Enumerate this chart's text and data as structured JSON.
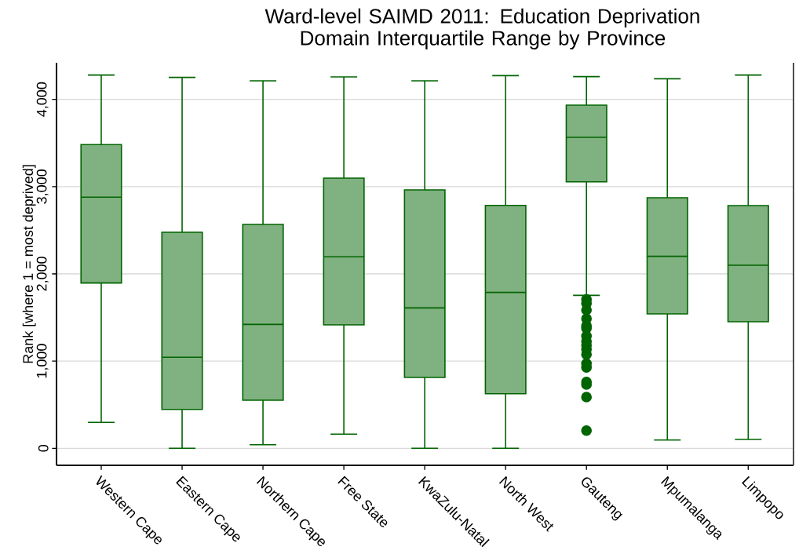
{
  "chart_data": {
    "type": "box",
    "title": "Ward-level SAIMD 2011: Education Deprivation Domain Interquartile Range by Province",
    "ylabel": "Rank [where 1 = most deprived]",
    "categories": [
      "Western Cape",
      "Eastern Cape",
      "Northern Cape",
      "Free State",
      "KwaZulu-Natal",
      "North West",
      "Gauteng",
      "Mpumalanga",
      "Limpopo"
    ],
    "color": "#006400",
    "marker": "circle",
    "grid": "y",
    "ylim": [
      -195,
      4420
    ],
    "yticks": [
      {
        "value": 0,
        "label": "0"
      },
      {
        "value": 1000,
        "label": "1,000"
      },
      {
        "value": 2000,
        "label": "2,000"
      },
      {
        "value": 3000,
        "label": "3,000"
      },
      {
        "value": 4000,
        "label": "4,000"
      }
    ],
    "boxes": [
      {
        "low": 297,
        "q1": 1895,
        "median": 2879,
        "q3": 3482,
        "high": 4279
      },
      {
        "low": 0,
        "q1": 446,
        "median": 1044,
        "q3": 2477,
        "high": 4252
      },
      {
        "low": 41,
        "q1": 551,
        "median": 1421,
        "q3": 2567,
        "high": 4213
      },
      {
        "low": 162,
        "q1": 1415,
        "median": 2195,
        "q3": 3098,
        "high": 4258
      },
      {
        "low": 0,
        "q1": 812,
        "median": 1610,
        "q3": 2963,
        "high": 4213
      },
      {
        "low": 0,
        "q1": 626,
        "median": 1787,
        "q3": 2785,
        "high": 4273
      },
      {
        "low": 1754,
        "q1": 3055,
        "median": 3565,
        "q3": 3934,
        "high": 4261,
        "outliers": [
          1706,
          1661,
          1586,
          1487,
          1406,
          1376,
          1287,
          1226,
          1181,
          1136,
          1076,
          972,
          927,
          761,
          731,
          587,
          203
        ]
      },
      {
        "low": 95,
        "q1": 1541,
        "median": 2201,
        "q3": 2873,
        "high": 4237
      },
      {
        "low": 102,
        "q1": 1451,
        "median": 2099,
        "q3": 2783,
        "high": 4279
      }
    ]
  }
}
